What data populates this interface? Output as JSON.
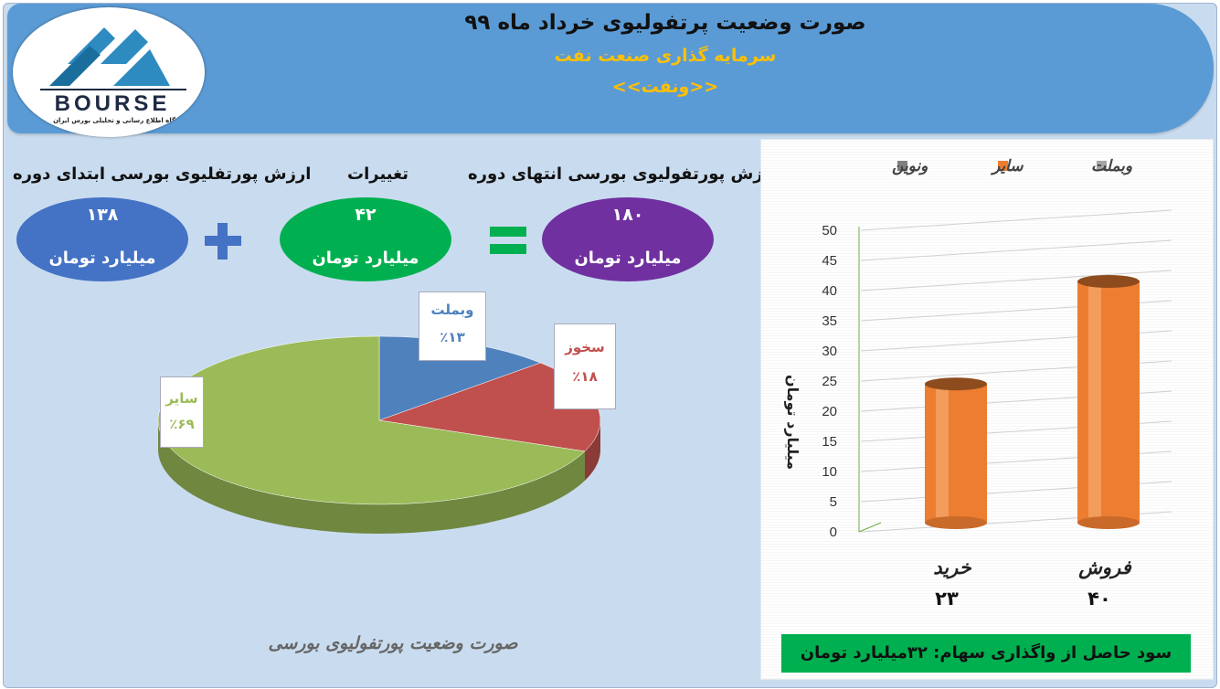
{
  "header": {
    "title": "صورت وضعیت پرتفولیوی خرداد ماه ۹۹",
    "subtitle": "سرمایه گذاری صنعت نفت",
    "symbol": "<<ونفت>>"
  },
  "logo": {
    "word": "BOURSE",
    "subtitle": "پایگاه اطلاع رسانی و تحلیلی بورس ایران"
  },
  "summary": {
    "start": {
      "label": "ارزش پورتفلیوی بورسی ابتدای دوره",
      "value": "۱۳۸",
      "unit": "میلیارد تومان",
      "color": "#4472c4"
    },
    "change": {
      "label": "تغییرات",
      "value": "۴۲",
      "unit": "میلیارد تومان",
      "color": "#00b050"
    },
    "end": {
      "label": "ارزش پورتفولیوی بورسی انتهای دوره",
      "value": "۱۸۰",
      "unit": "میلیارد تومان",
      "color": "#7030a0"
    },
    "plus_color": "#4472c4",
    "equals_color": "#00b050"
  },
  "pie": {
    "caption": "صورت وضعیت پورتفولیوی بورسی"
  },
  "bar": {
    "ylabel": "میلیارد تومان",
    "profit_note": "سود حاصل از واگذاری سهام: ۳۲میلیارد تومان"
  },
  "chart_data": [
    {
      "type": "pie",
      "title": "صورت وضعیت پورتفولیوی بورسی",
      "slices": [
        {
          "label": "وبملت",
          "value": 13,
          "display": "٪۱۳",
          "color": "#4f81bd"
        },
        {
          "label": "سخوز",
          "value": 18,
          "display": "٪۱۸",
          "color": "#c0504d"
        },
        {
          "label": "سایر",
          "value": 69,
          "display": "٪۶۹",
          "color": "#9bbb59"
        }
      ]
    },
    {
      "type": "bar",
      "categories": [
        "خرید",
        "فروش"
      ],
      "category_values_display": [
        "۲۳",
        "۴۰"
      ],
      "legend": [
        {
          "name": "وبملت",
          "color": "#a5a5a5"
        },
        {
          "name": "سایر",
          "color": "#ed7d31"
        },
        {
          "name": "ونوین",
          "color": "#7f7f7f"
        }
      ],
      "series": [
        {
          "name": "سایر",
          "values": [
            23,
            40
          ],
          "color": "#ed7d31"
        }
      ],
      "xlabel": "",
      "ylabel": "میلیارد تومان",
      "ylim": [
        0,
        50
      ],
      "yticks": [
        0,
        5,
        10,
        15,
        20,
        25,
        30,
        35,
        40,
        45,
        50
      ],
      "legend_position": "top",
      "grid": true
    }
  ]
}
